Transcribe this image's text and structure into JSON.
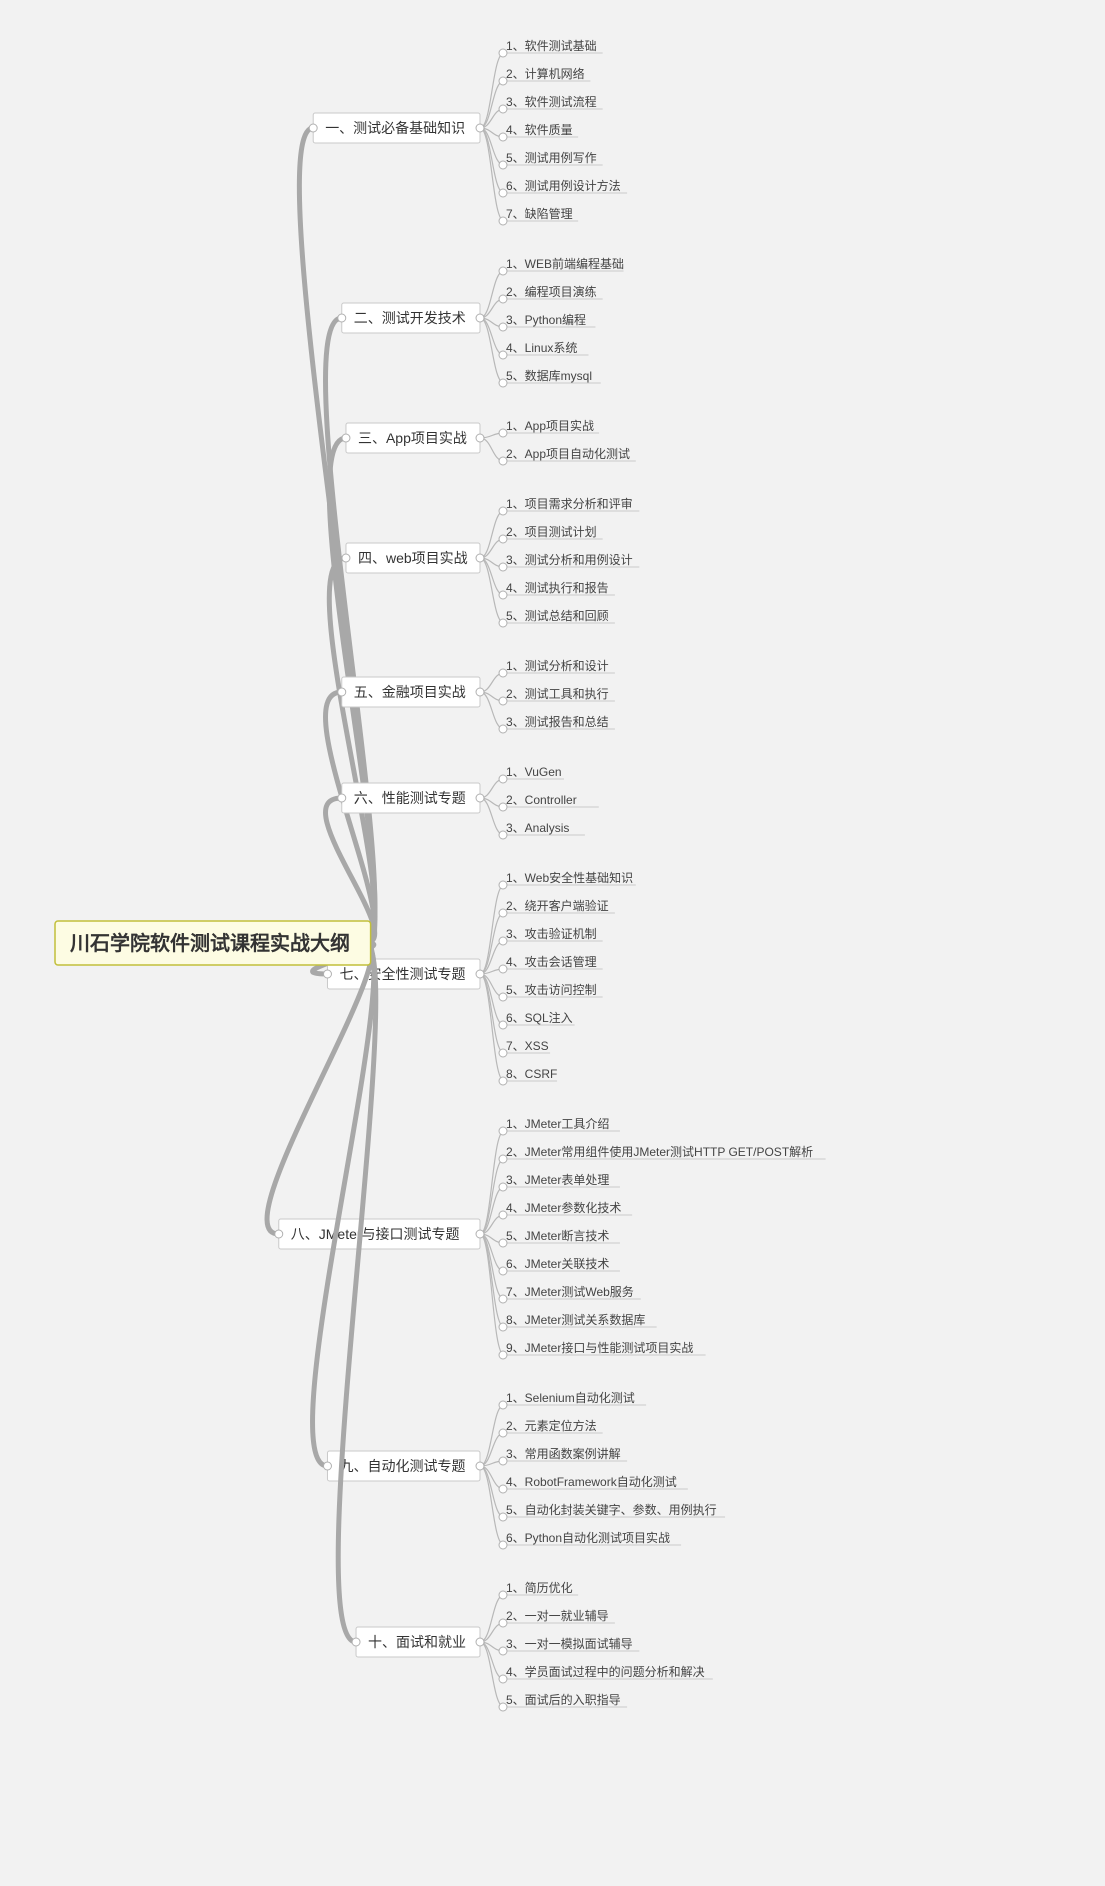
{
  "type": "mindmap",
  "background": "#f2f2f2",
  "root": {
    "label": "川石学院软件测试课程实战大纲",
    "box_fill": "#fdfce3",
    "box_stroke": "#c2bf3a",
    "fontsize": 20,
    "font_weight": "bold"
  },
  "branch_style": {
    "box_fill": "#ffffff",
    "box_stroke": "#c9c9c9",
    "fontsize": 14
  },
  "leaf_style": {
    "fontsize": 12,
    "underline_color": "#c9c9c9",
    "text_color": "#444444"
  },
  "trunk_line": {
    "color": "#a8a8a8",
    "width": 5
  },
  "branch_line": {
    "color": "#b8b8b8",
    "width": 1.2
  },
  "dot_style": {
    "fill": "#ffffff",
    "stroke": "#b0b0b0",
    "radius": 4
  },
  "branches": [
    {
      "label": "一、测试必备基础知识",
      "leaves": [
        "1、软件测试基础",
        "2、计算机网络",
        "3、软件测试流程",
        "4、软件质量",
        "5、测试用例写作",
        "6、测试用例设计方法",
        "7、缺陷管理"
      ]
    },
    {
      "label": "二、测试开发技术",
      "leaves": [
        "1、WEB前端编程基础",
        "2、编程项目演练",
        "3、Python编程",
        "4、Linux系统",
        "5、数据库mysql"
      ]
    },
    {
      "label": "三、App项目实战",
      "leaves": [
        "1、App项目实战",
        "2、App项目自动化测试"
      ]
    },
    {
      "label": "四、web项目实战",
      "leaves": [
        "1、项目需求分析和评审",
        "2、项目测试计划",
        "3、测试分析和用例设计",
        "4、测试执行和报告",
        "5、测试总结和回顾"
      ]
    },
    {
      "label": "五、金融项目实战",
      "leaves": [
        "1、测试分析和设计",
        "2、测试工具和执行",
        "3、测试报告和总结"
      ]
    },
    {
      "label": "六、性能测试专题",
      "leaves": [
        "1、VuGen",
        "2、Controller",
        "3、Analysis"
      ]
    },
    {
      "label": "七、安全性测试专题",
      "leaves": [
        "1、Web安全性基础知识",
        "2、绕开客户端验证",
        "3、攻击验证机制",
        "4、攻击会话管理",
        "5、攻击访问控制",
        "6、SQL注入",
        "7、XSS",
        "8、CSRF"
      ]
    },
    {
      "label": "八、JMeter与接口测试专题",
      "leaves": [
        "1、JMeter工具介绍",
        "2、JMeter常用组件使用JMeter测试HTTP GET/POST解析",
        "3、JMeter表单处理",
        "4、JMeter参数化技术",
        "5、JMeter断言技术",
        "6、JMeter关联技术",
        "7、JMeter测试Web服务",
        "8、JMeter测试关系数据库",
        "9、JMeter接口与性能测试项目实战"
      ]
    },
    {
      "label": "九、自动化测试专题",
      "leaves": [
        "1、Selenium自动化测试",
        "2、元素定位方法",
        "3、常用函数案例讲解",
        "4、RobotFramework自动化测试",
        "5、自动化封装关键字、参数、用例执行",
        "6、Python自动化测试项目实战"
      ]
    },
    {
      "label": "十、面试和就业",
      "leaves": [
        "1、简历优化",
        "2、一对一就业辅导",
        "3、一对一模拟面试辅导",
        "4、学员面试过程中的问题分析和解决",
        "5、面试后的入职指导"
      ]
    }
  ]
}
